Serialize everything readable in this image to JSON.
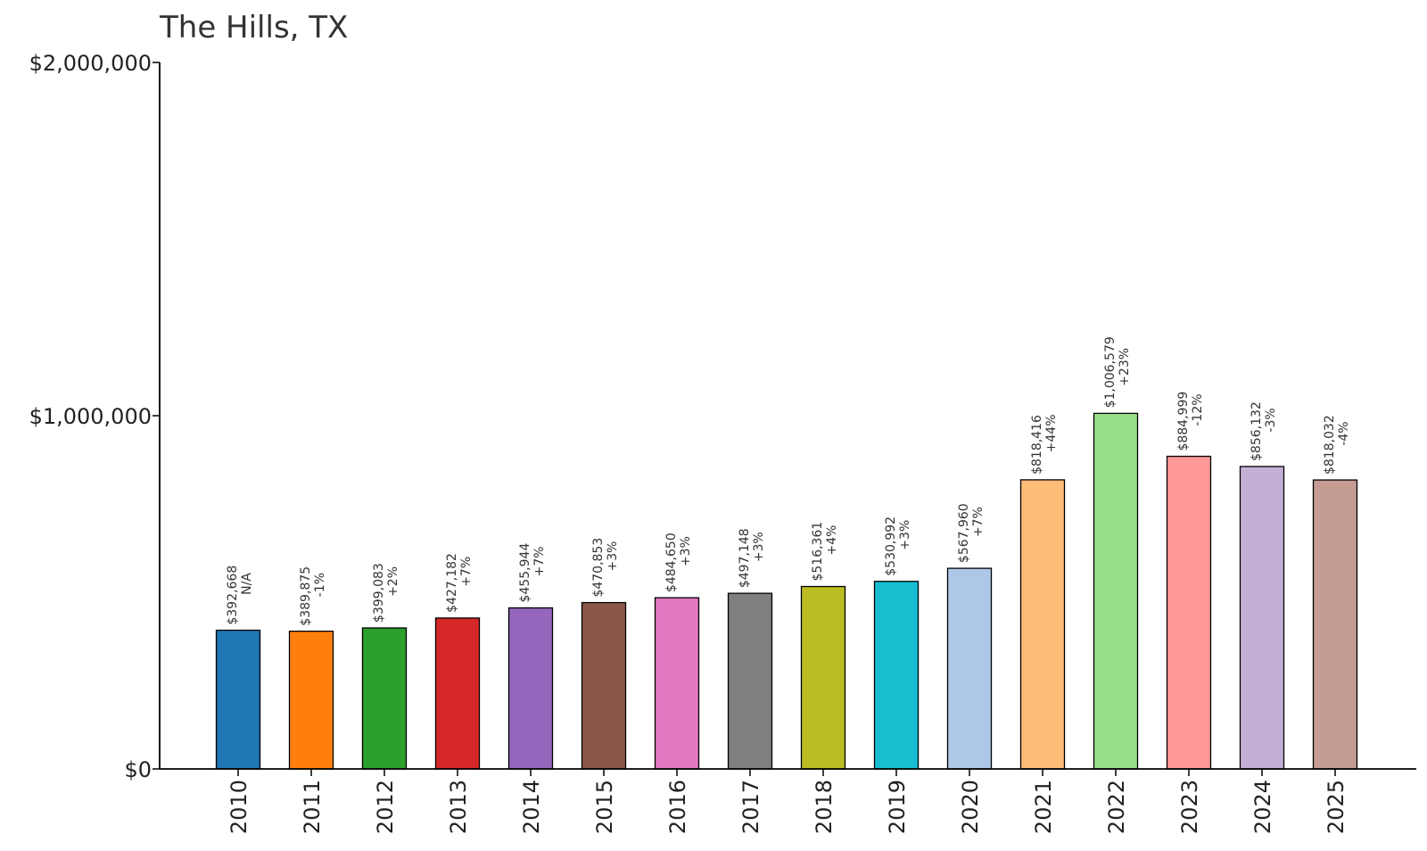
{
  "chart_data": {
    "type": "bar",
    "title": "The Hills, TX",
    "xlabel": "",
    "ylabel": "",
    "ylim": [
      0,
      2000000
    ],
    "yticks": [
      {
        "value": 0,
        "label": "$0"
      },
      {
        "value": 1000000,
        "label": "$1,000,000"
      },
      {
        "value": 2000000,
        "label": "$2,000,000"
      }
    ],
    "grid": false,
    "legend": "none",
    "categories": [
      "2010",
      "2011",
      "2012",
      "2013",
      "2014",
      "2015",
      "2016",
      "2017",
      "2018",
      "2019",
      "2020",
      "2021",
      "2022",
      "2023",
      "2024",
      "2025"
    ],
    "values": [
      392668,
      389875,
      399083,
      427182,
      455944,
      470853,
      484650,
      497148,
      516361,
      530992,
      567960,
      818416,
      1006579,
      884999,
      856132,
      818032
    ],
    "value_labels": [
      "$392,668",
      "$389,875",
      "$399,083",
      "$427,182",
      "$455,944",
      "$470,853",
      "$484,650",
      "$497,148",
      "$516,361",
      "$530,992",
      "$567,960",
      "$818,416",
      "$1,006,579",
      "$884,999",
      "$856,132",
      "$818,032"
    ],
    "change_labels": [
      "N/A",
      "-1%",
      "+2%",
      "+7%",
      "+7%",
      "+3%",
      "+3%",
      "+3%",
      "+4%",
      "+3%",
      "+7%",
      "+44%",
      "+23%",
      "-12%",
      "-3%",
      "-4%"
    ],
    "colors": [
      "#1f77b4",
      "#ff7f0e",
      "#2ca02c",
      "#d62728",
      "#9467bd",
      "#8c564b",
      "#e377c2",
      "#7f7f7f",
      "#bcbd22",
      "#17becf",
      "#aec7e8",
      "#ffbb78",
      "#98df8a",
      "#ff9896",
      "#c5b0d5",
      "#c49c94"
    ]
  }
}
